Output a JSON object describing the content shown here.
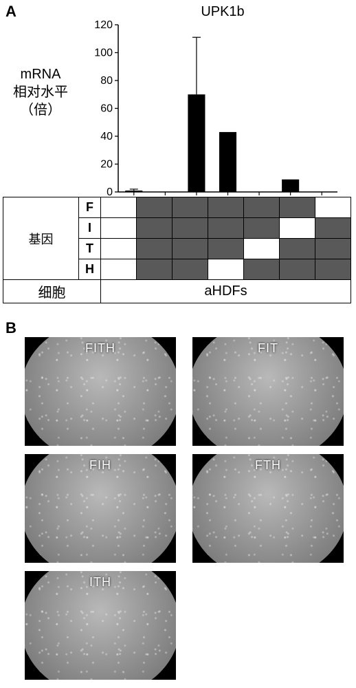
{
  "panelA": {
    "label": "A",
    "chart": {
      "type": "bar",
      "title": "UPK1b",
      "yaxis_label_lines": [
        "mRNA",
        "相对水平",
        "（倍）"
      ],
      "ylim": [
        0,
        120
      ],
      "ytick_step": 20,
      "yticks": [
        0,
        20,
        40,
        60,
        80,
        100,
        120
      ],
      "categories_count": 7,
      "values": [
        1,
        0,
        70,
        43,
        0,
        9,
        0
      ],
      "errors": [
        1,
        0,
        41,
        0,
        0,
        0,
        0
      ],
      "bar_color": "#000000",
      "axis_color": "#000000",
      "tick_fontsize": 16,
      "title_fontsize": 20,
      "label_fontsize": 20,
      "bar_width_ratio": 0.55,
      "background_color": "#ffffff"
    },
    "gene_table": {
      "row_header": "基因",
      "genes": [
        "F",
        "I",
        "T",
        "H"
      ],
      "cell_row_label": "细胞",
      "cell_row_value": "aHDFs",
      "fill_color": "#595959",
      "border_color": "#000000",
      "matrix": [
        [
          0,
          1,
          1,
          1,
          1,
          1,
          0
        ],
        [
          0,
          1,
          1,
          1,
          1,
          0,
          1
        ],
        [
          0,
          1,
          1,
          1,
          0,
          1,
          1
        ],
        [
          0,
          1,
          1,
          0,
          1,
          1,
          1
        ]
      ]
    }
  },
  "panelB": {
    "label": "B",
    "micrographs": [
      {
        "label": "FITH"
      },
      {
        "label": "FIT"
      },
      {
        "label": "FIH"
      },
      {
        "label": "FTH"
      },
      {
        "label": "ITH"
      }
    ],
    "image_bg": "#000000",
    "disc_tone": "#8c8c8c",
    "label_color": "#ffffff",
    "label_fontsize": 18
  }
}
